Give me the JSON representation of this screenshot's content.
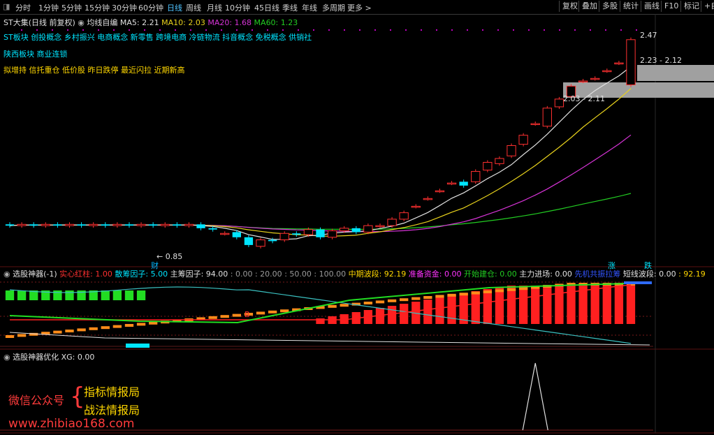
{
  "toolbar": {
    "tabs": [
      "分时",
      "1分钟",
      "5分钟",
      "15分钟",
      "30分钟",
      "60分钟",
      "日线",
      "周线",
      "月线",
      "10分钟",
      "45日线",
      "季线",
      "年线",
      "多周期",
      "更多 >"
    ],
    "active_tab": "日线",
    "right_buttons": [
      "复权",
      "叠加",
      "多股",
      "统计",
      "画线",
      "F10",
      "标记",
      "+自"
    ]
  },
  "main": {
    "title": "ST大集(日线 前复权)",
    "ma_label": "均线自编",
    "ma5": "MA5: 2.21",
    "ma10": "MA10: 2.03",
    "ma20": "MA20: 1.68",
    "ma60": "MA60: 1.23",
    "concepts": "ST板块 创投概念 乡村振兴 电商概念 新零售 跨境电商 冷链物流 抖音概念 免税概念 供销社",
    "region": "陕西板块  商业连锁",
    "tags": "拟增持 信托重仓 低价股 昨日跌停 最近闪拉 近期新高",
    "price_labels": {
      "high": "2.47",
      "upper_range": "2.23 - 2.12",
      "lower_range": "2.03 - 2.11",
      "low": "0.85"
    },
    "markers": {
      "cai": "财",
      "zhang": "涨",
      "die": "跌"
    },
    "colors": {
      "ma5": "#e0e0e0",
      "ma10": "#e8d21c",
      "ma20": "#d633d6",
      "ma60": "#22cc22",
      "up": "#ff3030",
      "down": "#00e5ff"
    }
  },
  "panel1": {
    "title": "选股神器(-1)",
    "items": [
      {
        "label": "实心红柱: 1.00",
        "color": "#ff3030"
      },
      {
        "label": "散筹因子: 5.00",
        "color": "#00e5ff"
      },
      {
        "label": "主筹因子: 94.00",
        "color": "#e0e0e0"
      },
      {
        "label": ": 0.00",
        "color": "#9a9a9a"
      },
      {
        "label": ": 20.00",
        "color": "#9a9a9a"
      },
      {
        "label": ": 50.00",
        "color": "#9a9a9a"
      },
      {
        "label": ": 100.00",
        "color": "#9a9a9a"
      },
      {
        "label": "中期波段: 92.19",
        "color": "#ffd700"
      },
      {
        "label": "准备资金: 0.00",
        "color": "#ff33ff"
      },
      {
        "label": "开始建仓: 0.00",
        "color": "#22cc22"
      },
      {
        "label": "主力进场: 0.00",
        "color": "#e0e0e0"
      },
      {
        "label": "先机共振拉筹",
        "color": "#3355ff"
      },
      {
        "label": "短线波段: 0.00",
        "color": "#e0e0e0"
      },
      {
        "label": ": 92.19",
        "color": "#ffd700"
      }
    ],
    "marker_b": "B"
  },
  "panel2": {
    "title": "选股神器优化",
    "xg": "XG: 0.00"
  },
  "watermark": {
    "wechat": "微信公众号",
    "brace": "{",
    "line1": "指标情报局",
    "line2": "战法情报局",
    "url": "www.zhibiao168.com"
  },
  "chart_data": {
    "type": "candlestick",
    "title": "ST大集(日线 前复权)",
    "candles": [
      {
        "o": 1.04,
        "c": 1.03
      },
      {
        "o": 1.03,
        "c": 1.04
      },
      {
        "o": 1.04,
        "c": 1.03
      },
      {
        "o": 1.03,
        "c": 1.04
      },
      {
        "o": 1.04,
        "c": 1.03
      },
      {
        "o": 1.03,
        "c": 1.04
      },
      {
        "o": 1.04,
        "c": 1.03
      },
      {
        "o": 1.03,
        "c": 1.04
      },
      {
        "o": 1.04,
        "c": 1.03
      },
      {
        "o": 1.03,
        "c": 1.04
      },
      {
        "o": 1.04,
        "c": 1.03
      },
      {
        "o": 1.03,
        "c": 1.04
      },
      {
        "o": 1.04,
        "c": 1.03
      },
      {
        "o": 1.03,
        "c": 1.04
      },
      {
        "o": 1.04,
        "c": 1.03
      },
      {
        "o": 1.03,
        "c": 1.04
      },
      {
        "o": 1.04,
        "c": 1.01
      },
      {
        "o": 1.01,
        "c": 1.0
      },
      {
        "o": 0.97,
        "c": 0.97
      },
      {
        "o": 0.98,
        "c": 0.94
      },
      {
        "o": 0.94,
        "c": 0.88
      },
      {
        "o": 0.87,
        "c": 0.92
      },
      {
        "o": 0.92,
        "c": 0.91
      },
      {
        "o": 0.92,
        "c": 0.97
      },
      {
        "o": 0.97,
        "c": 0.96
      },
      {
        "o": 0.96,
        "c": 1.0
      },
      {
        "o": 1.0,
        "c": 0.94
      },
      {
        "o": 0.94,
        "c": 0.99
      },
      {
        "o": 0.99,
        "c": 1.01
      },
      {
        "o": 1.01,
        "c": 0.98
      },
      {
        "o": 0.98,
        "c": 1.03
      },
      {
        "o": 1.03,
        "c": 1.03
      },
      {
        "o": 1.03,
        "c": 1.08
      },
      {
        "o": 1.08,
        "c": 1.13
      },
      {
        "o": 1.18,
        "c": 1.18
      },
      {
        "o": 1.24,
        "c": 1.24
      },
      {
        "o": 1.3,
        "c": 1.3
      },
      {
        "o": 1.36,
        "c": 1.36
      },
      {
        "o": 1.37,
        "c": 1.34
      },
      {
        "o": 1.37,
        "c": 1.45
      },
      {
        "o": 1.46,
        "c": 1.52
      },
      {
        "o": 1.51,
        "c": 1.55
      },
      {
        "o": 1.57,
        "c": 1.65
      },
      {
        "o": 1.66,
        "c": 1.73
      },
      {
        "o": 1.82,
        "c": 1.82
      },
      {
        "o": 1.8,
        "c": 1.94
      },
      {
        "o": 1.95,
        "c": 2.01
      },
      {
        "o": 2.03,
        "c": 2.11
      },
      {
        "o": 2.15,
        "c": 2.15
      },
      {
        "o": 2.17,
        "c": 2.17
      },
      {
        "o": 2.23,
        "c": 2.23
      },
      {
        "o": 2.29,
        "c": 2.29
      },
      {
        "o": 2.12,
        "c": 2.47
      }
    ],
    "price_range": [
      0.82,
      2.55
    ],
    "series": [
      {
        "name": "MA5",
        "value_last": 2.21
      },
      {
        "name": "MA10",
        "value_last": 2.03
      },
      {
        "name": "MA20",
        "value_last": 1.68
      },
      {
        "name": "MA60",
        "value_last": 1.23
      }
    ],
    "indicator_xg_peak": 1.0
  }
}
